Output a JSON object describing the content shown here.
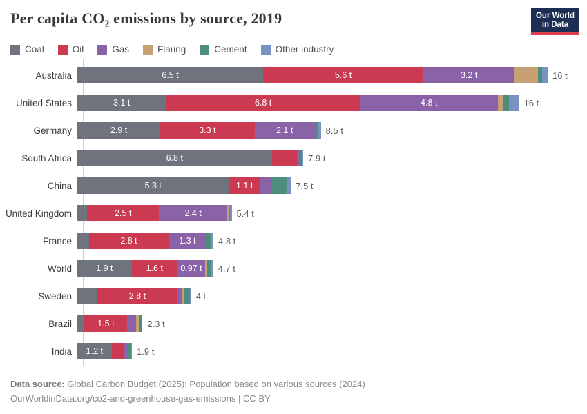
{
  "title": "Per capita CO₂ emissions by source, 2019",
  "logo": {
    "line1": "Our World",
    "line2": "in Data"
  },
  "footer": {
    "source_prefix": "Data source:",
    "source_text": " Global Carbon Budget (2025); Population based on various sources (2024)",
    "link_text": "OurWorldinData.org/co2-and-greenhouse-gas-emissions | CC BY"
  },
  "chart_data": {
    "type": "bar",
    "variant": "horizontal-stacked",
    "title": "Per capita CO₂ emissions by source, 2019",
    "unit": "t",
    "legend_position": "top",
    "series": [
      {
        "name": "Coal",
        "color": "#6e737d"
      },
      {
        "name": "Oil",
        "color": "#cb3a50"
      },
      {
        "name": "Gas",
        "color": "#8a62a8"
      },
      {
        "name": "Flaring",
        "color": "#c7a173"
      },
      {
        "name": "Cement",
        "color": "#4e8c7e"
      },
      {
        "name": "Other industry",
        "color": "#7a92bf"
      }
    ],
    "rows": [
      {
        "country": "Australia",
        "values": [
          6.5,
          5.6,
          3.2,
          0.8,
          0.15,
          0.2
        ],
        "segment_labels": [
          "6.5 t",
          "5.6 t",
          "3.2 t",
          "",
          "",
          ""
        ],
        "total_label": "16 t"
      },
      {
        "country": "United States",
        "values": [
          3.1,
          6.8,
          4.8,
          0.2,
          0.2,
          0.35
        ],
        "segment_labels": [
          "3.1 t",
          "6.8 t",
          "4.8 t",
          "",
          "",
          ""
        ],
        "total_label": "16 t"
      },
      {
        "country": "Germany",
        "values": [
          2.9,
          3.3,
          2.1,
          0.02,
          0.08,
          0.12
        ],
        "segment_labels": [
          "2.9 t",
          "3.3 t",
          "2.1 t",
          "",
          "",
          ""
        ],
        "total_label": "8.5 t"
      },
      {
        "country": "South Africa",
        "values": [
          6.8,
          0.87,
          0.12,
          0,
          0.06,
          0.05
        ],
        "segment_labels": [
          "6.8 t",
          "",
          "",
          "",
          "",
          ""
        ],
        "total_label": "7.9 t"
      },
      {
        "country": "China",
        "values": [
          5.3,
          1.1,
          0.36,
          0.01,
          0.55,
          0.15
        ],
        "segment_labels": [
          "5.3 t",
          "1.1 t",
          "",
          "",
          "",
          ""
        ],
        "total_label": "7.5 t"
      },
      {
        "country": "United Kingdom",
        "values": [
          0.35,
          2.5,
          2.4,
          0.03,
          0.06,
          0.06
        ],
        "segment_labels": [
          "",
          "2.5 t",
          "2.4 t",
          "",
          "",
          ""
        ],
        "total_label": "5.4 t"
      },
      {
        "country": "France",
        "values": [
          0.4,
          2.8,
          1.3,
          0.02,
          0.14,
          0.1
        ],
        "segment_labels": [
          "",
          "2.8 t",
          "1.3 t",
          "",
          "",
          ""
        ],
        "total_label": "4.8 t"
      },
      {
        "country": "World",
        "values": [
          1.9,
          1.6,
          0.97,
          0.06,
          0.16,
          0.06
        ],
        "segment_labels": [
          "1.9 t",
          "1.6 t",
          "0.97 t",
          "",
          "",
          ""
        ],
        "total_label": "4.7 t"
      },
      {
        "country": "Sweden",
        "values": [
          0.7,
          2.8,
          0.15,
          0.08,
          0.2,
          0.05
        ],
        "segment_labels": [
          "",
          "2.8 t",
          "",
          "",
          "",
          ""
        ],
        "total_label": "4 t"
      },
      {
        "country": "Brazil",
        "values": [
          0.25,
          1.5,
          0.3,
          0.1,
          0.1,
          0.03
        ],
        "segment_labels": [
          "",
          "1.5 t",
          "",
          "",
          "",
          ""
        ],
        "total_label": "2.3 t"
      },
      {
        "country": "India",
        "values": [
          1.2,
          0.45,
          0.1,
          0,
          0.13,
          0.03
        ],
        "segment_labels": [
          "1.2 t",
          "",
          "",
          "",
          "",
          ""
        ],
        "total_label": "1.9 t"
      }
    ]
  }
}
